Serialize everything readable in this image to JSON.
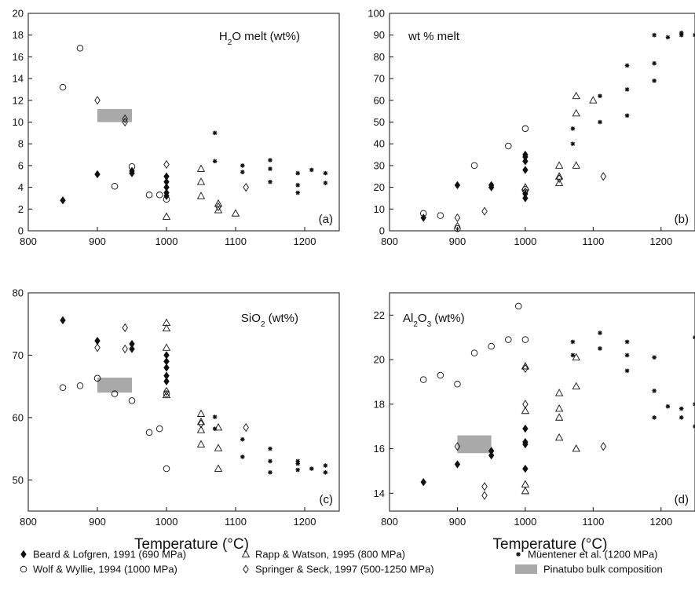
{
  "legend": [
    {
      "key": "bl",
      "label": "Beard & Lofgren, 1991 (690 MPa)",
      "marker": "diamond-filled"
    },
    {
      "key": "ww",
      "label": "Wolf & Wyllie, 1994 (1000 MPa)",
      "marker": "circle-open"
    },
    {
      "key": "rw",
      "label": "Rapp & Watson, 1995 (800 MPa)",
      "marker": "triangle-open"
    },
    {
      "key": "ss",
      "label": "Springer & Seck, 1997 (500-1250 MPa)",
      "marker": "diamond-open"
    },
    {
      "key": "mu",
      "label": "Müentener et al. (1200 MPa)",
      "marker": "asterisk"
    },
    {
      "key": "pin",
      "label": "Pinatubo bulk composition",
      "marker": "gray-box"
    }
  ],
  "colors": {
    "pinatubo": "#a9a9a9",
    "marker": "#111111"
  },
  "chart_data": [
    {
      "type": "scatter",
      "panel": "(a)",
      "title": "H2O melt (wt%)",
      "title_parts": {
        "pre": "H",
        "sub": "2",
        "post": "O melt (wt%)"
      },
      "xlabel": "",
      "xlim": [
        800,
        1250
      ],
      "xticks": [
        800,
        900,
        1000,
        1100,
        1200
      ],
      "ylim": [
        0,
        20
      ],
      "yticks": [
        0,
        2,
        4,
        6,
        8,
        10,
        12,
        14,
        16,
        18,
        20
      ],
      "pinatubo": {
        "x": [
          900,
          950
        ],
        "y": [
          10.0,
          11.2
        ]
      },
      "series": [
        {
          "key": "bl",
          "points": [
            [
              850,
              2.8
            ],
            [
              900,
              5.2
            ],
            [
              950,
              5.3
            ],
            [
              950,
              5.5
            ],
            [
              1000,
              3.2
            ],
            [
              1000,
              3.5
            ],
            [
              1000,
              4.0
            ],
            [
              1000,
              4.5
            ],
            [
              1000,
              5.0
            ]
          ]
        },
        {
          "key": "ww",
          "points": [
            [
              850,
              13.2
            ],
            [
              875,
              16.8
            ],
            [
              925,
              4.1
            ],
            [
              950,
              5.9
            ],
            [
              975,
              3.3
            ],
            [
              990,
              3.3
            ],
            [
              1000,
              2.9
            ]
          ]
        },
        {
          "key": "rw",
          "points": [
            [
              1000,
              1.3
            ],
            [
              1050,
              3.2
            ],
            [
              1050,
              4.5
            ],
            [
              1050,
              5.7
            ],
            [
              1075,
              1.9
            ],
            [
              1075,
              2.5
            ],
            [
              1100,
              1.6
            ]
          ]
        },
        {
          "key": "ss",
          "points": [
            [
              900,
              12.0
            ],
            [
              940,
              10.0
            ],
            [
              940,
              10.3
            ],
            [
              1000,
              6.1
            ],
            [
              1075,
              2.2
            ],
            [
              1115,
              4.0
            ]
          ]
        },
        {
          "key": "mu",
          "points": [
            [
              1070,
              9.0
            ],
            [
              1070,
              6.4
            ],
            [
              1110,
              6.0
            ],
            [
              1110,
              5.4
            ],
            [
              1150,
              6.5
            ],
            [
              1150,
              5.7
            ],
            [
              1150,
              4.5
            ],
            [
              1190,
              5.3
            ],
            [
              1190,
              4.2
            ],
            [
              1190,
              3.5
            ],
            [
              1210,
              5.6
            ],
            [
              1230,
              5.3
            ],
            [
              1230,
              4.4
            ]
          ]
        }
      ]
    },
    {
      "type": "scatter",
      "panel": "(b)",
      "title": "wt % melt",
      "xlabel": "",
      "xlim": [
        800,
        1250
      ],
      "xticks": [
        800,
        900,
        1000,
        1100,
        1200
      ],
      "ylim": [
        0,
        100
      ],
      "yticks": [
        0,
        10,
        20,
        30,
        40,
        50,
        60,
        70,
        80,
        90,
        100
      ],
      "series": [
        {
          "key": "bl",
          "points": [
            [
              850,
              6
            ],
            [
              900,
              21
            ],
            [
              950,
              20
            ],
            [
              950,
              21
            ],
            [
              1000,
              15
            ],
            [
              1000,
              17
            ],
            [
              1000,
              28
            ],
            [
              1000,
              32
            ],
            [
              1000,
              34
            ],
            [
              1000,
              35
            ]
          ]
        },
        {
          "key": "ww",
          "points": [
            [
              850,
              8
            ],
            [
              875,
              7
            ],
            [
              900,
              1
            ],
            [
              925,
              30
            ],
            [
              975,
              39
            ],
            [
              1000,
              47
            ],
            [
              1000,
              19
            ]
          ]
        },
        {
          "key": "rw",
          "points": [
            [
              1000,
              20
            ],
            [
              1050,
              22
            ],
            [
              1050,
              25
            ],
            [
              1050,
              30
            ],
            [
              1075,
              30
            ],
            [
              1075,
              54
            ],
            [
              1075,
              62
            ],
            [
              1100,
              60
            ]
          ]
        },
        {
          "key": "ss",
          "points": [
            [
              900,
              2
            ],
            [
              900,
              6
            ],
            [
              940,
              9
            ],
            [
              1000,
              18
            ],
            [
              1050,
              24
            ],
            [
              1115,
              25
            ]
          ]
        },
        {
          "key": "mu",
          "points": [
            [
              1070,
              40
            ],
            [
              1070,
              47
            ],
            [
              1110,
              50
            ],
            [
              1110,
              62
            ],
            [
              1150,
              53
            ],
            [
              1150,
              65
            ],
            [
              1150,
              76
            ],
            [
              1190,
              69
            ],
            [
              1190,
              77
            ],
            [
              1190,
              90
            ],
            [
              1210,
              89
            ],
            [
              1230,
              90
            ],
            [
              1230,
              91
            ],
            [
              1250,
              90
            ]
          ]
        }
      ]
    },
    {
      "type": "scatter",
      "panel": "(c)",
      "title": "SiO2 (wt%)",
      "title_parts": {
        "pre": "SiO",
        "sub": "2",
        "post": " (wt%)"
      },
      "xlabel": "Temperature (°C)",
      "xlim": [
        800,
        1250
      ],
      "xticks": [
        800,
        900,
        1000,
        1100,
        1200
      ],
      "ylim": [
        45,
        80
      ],
      "yticks": [
        50,
        60,
        70,
        80
      ],
      "pinatubo": {
        "x": [
          900,
          950
        ],
        "y": [
          64.0,
          66.4
        ]
      },
      "series": [
        {
          "key": "bl",
          "points": [
            [
              850,
              75.6
            ],
            [
              900,
              72.3
            ],
            [
              950,
              71.0
            ],
            [
              950,
              71.8
            ],
            [
              1000,
              65.8
            ],
            [
              1000,
              66.7
            ],
            [
              1000,
              68.0
            ],
            [
              1000,
              69.0
            ],
            [
              1000,
              70.0
            ]
          ]
        },
        {
          "key": "ww",
          "points": [
            [
              850,
              64.8
            ],
            [
              875,
              65.1
            ],
            [
              900,
              66.3
            ],
            [
              925,
              63.8
            ],
            [
              950,
              62.7
            ],
            [
              975,
              57.6
            ],
            [
              990,
              58.2
            ],
            [
              1000,
              51.8
            ],
            [
              1000,
              63.8
            ]
          ]
        },
        {
          "key": "rw",
          "points": [
            [
              1000,
              63.6
            ],
            [
              1000,
              71.2
            ],
            [
              1000,
              74.3
            ],
            [
              1000,
              75.2
            ],
            [
              1050,
              55.7
            ],
            [
              1050,
              58.0
            ],
            [
              1050,
              59.3
            ],
            [
              1050,
              60.6
            ],
            [
              1075,
              51.8
            ],
            [
              1075,
              55.1
            ],
            [
              1075,
              58.4
            ]
          ]
        },
        {
          "key": "ss",
          "points": [
            [
              900,
              71.2
            ],
            [
              940,
              71.0
            ],
            [
              940,
              74.4
            ],
            [
              1000,
              64.2
            ],
            [
              1050,
              59.0
            ],
            [
              1115,
              58.4
            ]
          ]
        },
        {
          "key": "mu",
          "points": [
            [
              1070,
              58.2
            ],
            [
              1070,
              60.1
            ],
            [
              1110,
              53.7
            ],
            [
              1110,
              56.5
            ],
            [
              1150,
              51.2
            ],
            [
              1150,
              53.0
            ],
            [
              1150,
              55.0
            ],
            [
              1190,
              51.6
            ],
            [
              1190,
              52.6
            ],
            [
              1190,
              53.0
            ],
            [
              1210,
              51.8
            ],
            [
              1230,
              51.2
            ],
            [
              1230,
              52.3
            ]
          ]
        }
      ]
    },
    {
      "type": "scatter",
      "panel": "(d)",
      "title": "Al2O3 (wt%)",
      "title_parts": {
        "pre": "Al",
        "sub1": "2",
        "mid": "O",
        "sub2": "3",
        "post": " (wt%)"
      },
      "xlabel": "Temperature (°C)",
      "xlim": [
        800,
        1250
      ],
      "xticks": [
        800,
        900,
        1000,
        1100,
        1200
      ],
      "ylim": [
        13.2,
        23.0
      ],
      "yticks": [
        14,
        16,
        18,
        20,
        22
      ],
      "pinatubo": {
        "x": [
          900,
          950
        ],
        "y": [
          15.8,
          16.6
        ]
      },
      "series": [
        {
          "key": "bl",
          "points": [
            [
              850,
              14.5
            ],
            [
              900,
              15.3
            ],
            [
              950,
              15.7
            ],
            [
              950,
              15.9
            ],
            [
              1000,
              15.1
            ],
            [
              1000,
              16.2
            ],
            [
              1000,
              16.3
            ],
            [
              1000,
              16.9
            ]
          ]
        },
        {
          "key": "ww",
          "points": [
            [
              850,
              19.1
            ],
            [
              875,
              19.3
            ],
            [
              900,
              18.9
            ],
            [
              925,
              20.3
            ],
            [
              950,
              20.6
            ],
            [
              975,
              20.9
            ],
            [
              990,
              22.4
            ],
            [
              1000,
              20.9
            ]
          ]
        },
        {
          "key": "rw",
          "points": [
            [
              1000,
              14.1
            ],
            [
              1000,
              14.4
            ],
            [
              1000,
              17.7
            ],
            [
              1000,
              19.7
            ],
            [
              1050,
              16.5
            ],
            [
              1050,
              17.4
            ],
            [
              1050,
              17.8
            ],
            [
              1050,
              18.5
            ],
            [
              1075,
              16.0
            ],
            [
              1075,
              18.8
            ],
            [
              1075,
              20.1
            ]
          ]
        },
        {
          "key": "ss",
          "points": [
            [
              900,
              16.1
            ],
            [
              940,
              13.9
            ],
            [
              940,
              14.3
            ],
            [
              1000,
              18.0
            ],
            [
              1000,
              19.6
            ],
            [
              1115,
              16.1
            ]
          ]
        },
        {
          "key": "mu",
          "points": [
            [
              1070,
              20.2
            ],
            [
              1070,
              20.8
            ],
            [
              1110,
              20.5
            ],
            [
              1110,
              21.2
            ],
            [
              1150,
              19.5
            ],
            [
              1150,
              20.2
            ],
            [
              1150,
              20.8
            ],
            [
              1190,
              17.4
            ],
            [
              1190,
              18.6
            ],
            [
              1190,
              20.1
            ],
            [
              1210,
              17.9
            ],
            [
              1230,
              17.4
            ],
            [
              1230,
              17.8
            ],
            [
              1250,
              17.0
            ],
            [
              1250,
              18.0
            ],
            [
              1250,
              21.0
            ]
          ]
        }
      ]
    }
  ]
}
